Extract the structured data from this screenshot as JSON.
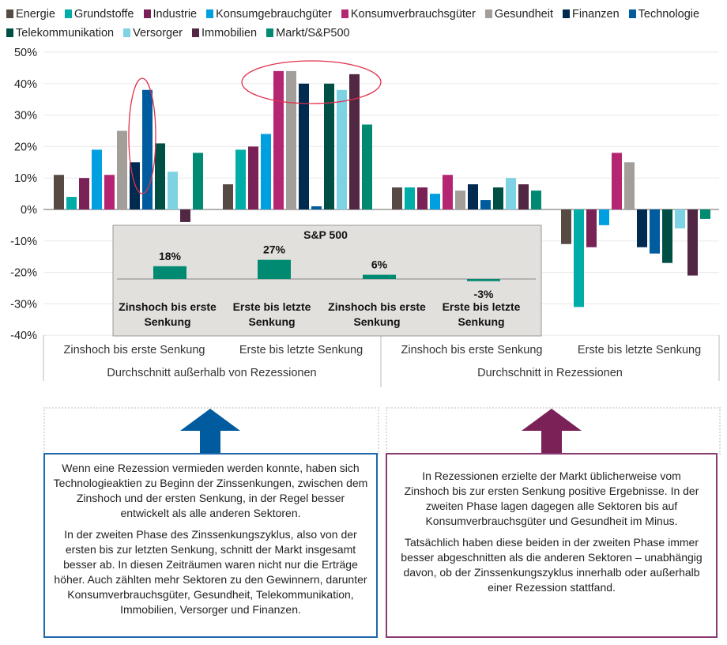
{
  "legend": [
    {
      "name": "Energie",
      "color": "#574a44"
    },
    {
      "name": "Grundstoffe",
      "color": "#00aca7"
    },
    {
      "name": "Industrie",
      "color": "#7a2157"
    },
    {
      "name": "Konsumgebrauchgüter",
      "color": "#009fe0"
    },
    {
      "name": "Konsumverbrauchsgüter",
      "color": "#b52672"
    },
    {
      "name": "Gesundheit",
      "color": "#a39e99"
    },
    {
      "name": "Finanzen",
      "color": "#002a4f"
    },
    {
      "name": "Technologie",
      "color": "#005c9e"
    },
    {
      "name": "Telekommunikation",
      "color": "#004f45"
    },
    {
      "name": "Versorger",
      "color": "#7dd3e4"
    },
    {
      "name": "Immobilien",
      "color": "#522743"
    },
    {
      "name": "Markt/S&P500",
      "color": "#008a72"
    }
  ],
  "chart_data": [
    {
      "type": "bar",
      "categories": [
        "Zinshoch bis erste Senkung",
        "Erste bis letzte Senkung",
        "Zinshoch bis erste Senkung",
        "Erste bis letzte Senkung"
      ],
      "groups": [
        "Durchschnitt außerhalb von Rezessionen",
        "Durchschnitt in Rezessionen"
      ],
      "ylim": [
        -40,
        50
      ],
      "yticks": [
        "50%",
        "40%",
        "30%",
        "20%",
        "10%",
        "0%",
        "-10%",
        "-20%",
        "-30%",
        "-40%"
      ],
      "grid": true,
      "legend_position": "top",
      "series": [
        {
          "name": "Energie",
          "values": [
            11,
            8,
            7,
            -11
          ]
        },
        {
          "name": "Grundstoffe",
          "values": [
            4,
            19,
            7,
            -31
          ]
        },
        {
          "name": "Industrie",
          "values": [
            10,
            20,
            7,
            -12
          ]
        },
        {
          "name": "Konsumgebrauchgüter",
          "values": [
            19,
            24,
            5,
            -5
          ]
        },
        {
          "name": "Konsumverbrauchsgüter",
          "values": [
            11,
            44,
            11,
            18
          ]
        },
        {
          "name": "Gesundheit",
          "values": [
            25,
            44,
            6,
            15
          ]
        },
        {
          "name": "Finanzen",
          "values": [
            15,
            40,
            8,
            -12
          ]
        },
        {
          "name": "Technologie",
          "values": [
            38,
            1,
            3,
            -14
          ]
        },
        {
          "name": "Telekommunikation",
          "values": [
            21,
            40,
            7,
            -17
          ]
        },
        {
          "name": "Versorger",
          "values": [
            12,
            38,
            10,
            -6
          ]
        },
        {
          "name": "Immobilien",
          "values": [
            -4,
            43,
            8,
            -21
          ]
        },
        {
          "name": "Markt/S&P500",
          "values": [
            18,
            27,
            6,
            -3
          ]
        }
      ]
    },
    {
      "type": "bar",
      "title": "S&P 500",
      "categories": [
        "Zinshoch bis erste Senkung",
        "Erste bis letzte Senkung",
        "Zinshoch bis erste Senkung",
        "Erste bis letzte Senkung"
      ],
      "values": [
        18,
        27,
        6,
        -3
      ],
      "data_labels": [
        "18%",
        "27%",
        "6%",
        "-3%"
      ],
      "color": "#008a72"
    }
  ],
  "annotation_color": "#e0314f",
  "boxes": {
    "left": {
      "color": "#005c9e",
      "paragraphs": [
        "Wenn eine Rezession vermieden werden konnte, haben sich Technologieaktien zu Beginn der Zinssenkungen, zwischen dem Zinshoch und der ersten Senkung, in der Regel besser entwickelt als alle anderen Sektoren.",
        "In der zweiten Phase des Zinssenkungszyklus, also von der ersten bis zur letzten Senkung, schnitt der Markt insgesamt besser ab. In diesen Zeiträumen waren nicht nur die Erträge höher. Auch zählten mehr Sektoren zu den Gewinnern, darunter Konsumverbrauchsgüter, Gesundheit, Telekommunikation, Immobilien, Versorger und Finanzen."
      ]
    },
    "right": {
      "color": "#7a2157",
      "paragraphs": [
        "In Rezessionen erzielte der Markt üblicherweise vom Zinshoch bis zur ersten Senkung positive Ergebnisse. In der zweiten Phase lagen dagegen alle Sektoren bis auf Konsumverbrauchsgüter und Gesundheit im Minus.",
        "Tatsächlich haben diese beiden in der zweiten Phase immer besser abgeschnitten als die anderen Sektoren – unabhängig davon, ob der Zinssenkungszyklus innerhalb oder außerhalb einer Rezession stattfand."
      ]
    }
  }
}
